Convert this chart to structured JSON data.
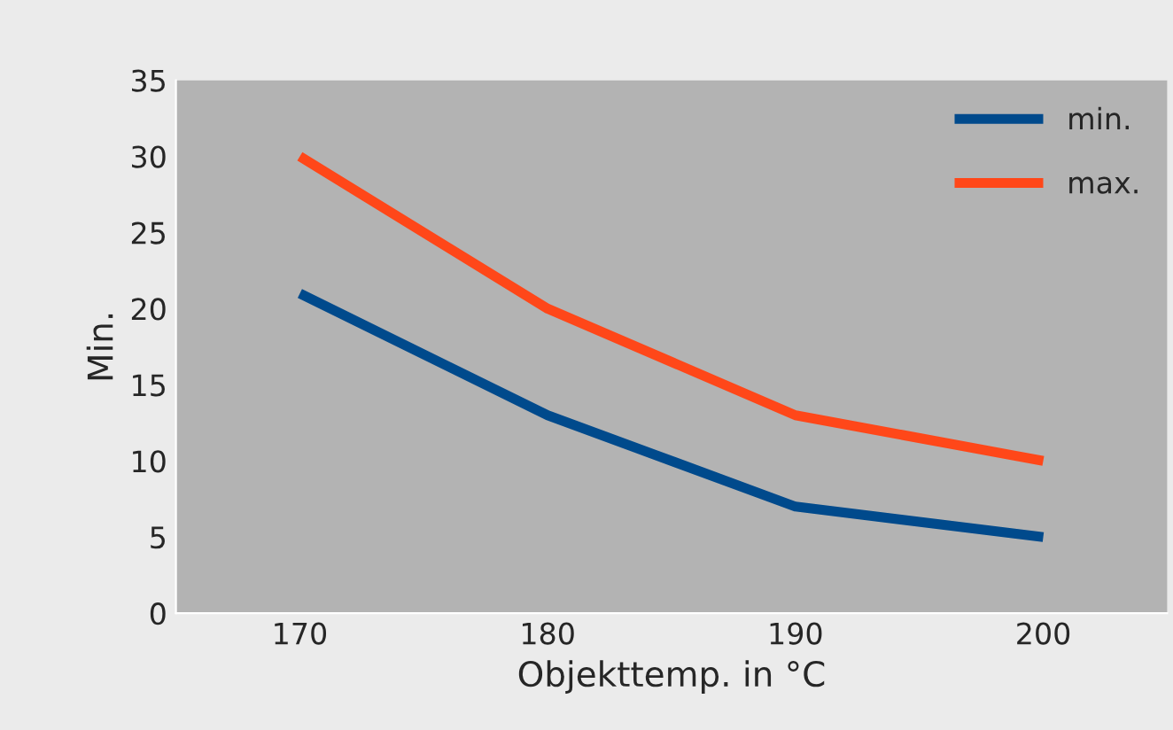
{
  "chart_data": {
    "type": "line",
    "xlabel": "Objekttemp. in °C",
    "ylabel": "Min.",
    "categories": [
      "170",
      "180",
      "190",
      "200"
    ],
    "series": [
      {
        "name": "min.",
        "color": "#004a8c",
        "values": [
          21,
          13,
          7,
          5
        ]
      },
      {
        "name": "max.",
        "color": "#ff4719",
        "values": [
          30,
          20,
          13,
          10
        ]
      }
    ],
    "ylim": [
      0,
      35
    ],
    "yticks": [
      0,
      5,
      10,
      15,
      20,
      25,
      30,
      35
    ],
    "grid": false,
    "legend": "top right",
    "marker": "none",
    "line_style": "solid"
  }
}
